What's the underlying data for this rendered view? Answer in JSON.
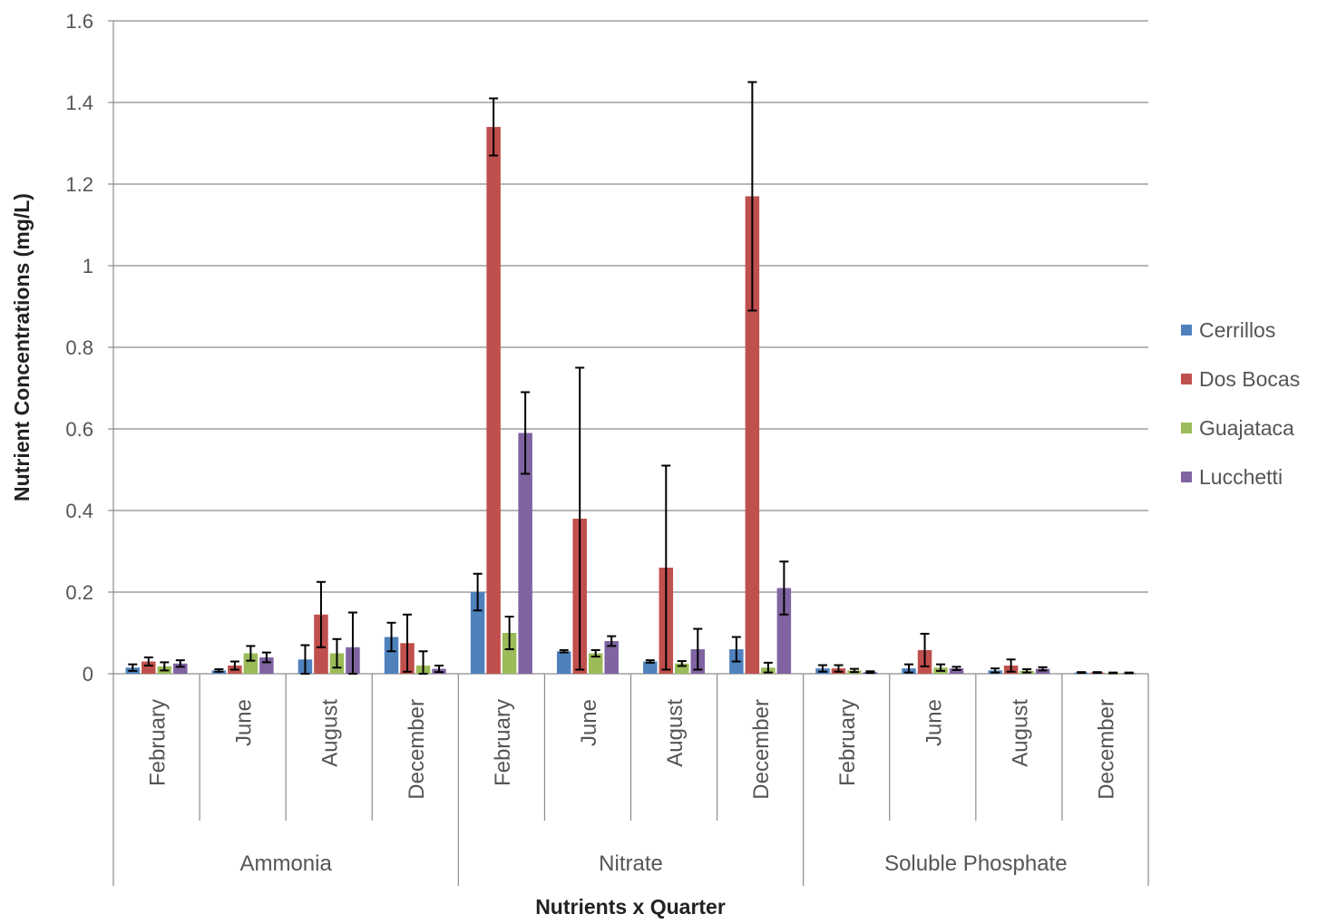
{
  "chart_data": {
    "type": "bar",
    "title": "",
    "xlabel": "Nutrients x Quarter",
    "ylabel": "Nutrient Concentrations (mg/L)",
    "ylim": [
      0,
      1.6
    ],
    "yticks": [
      "0",
      "0.2",
      "0.4",
      "0.6",
      "0.8",
      "1",
      "1.2",
      "1.4",
      "1.6"
    ],
    "grid": true,
    "legend_position": "right",
    "groups": [
      {
        "name": "Ammonia",
        "categories": [
          "February",
          "June",
          "August",
          "December"
        ]
      },
      {
        "name": "Nitrate",
        "categories": [
          "February",
          "June",
          "August",
          "December"
        ]
      },
      {
        "name": "Soluble Phosphate",
        "categories": [
          "February",
          "June",
          "August",
          "December"
        ]
      }
    ],
    "series": [
      {
        "name": "Cerrillos",
        "color": "#4F81BD",
        "values": [
          0.015,
          0.008,
          0.035,
          0.09,
          0.2,
          0.055,
          0.03,
          0.06,
          0.013,
          0.013,
          0.008,
          0.003
        ],
        "errors": [
          0.008,
          0.003,
          0.035,
          0.035,
          0.045,
          0.003,
          0.003,
          0.03,
          0.008,
          0.01,
          0.005,
          0.001
        ]
      },
      {
        "name": "Dos Bocas",
        "color": "#C0504D",
        "values": [
          0.03,
          0.02,
          0.145,
          0.075,
          1.34,
          0.38,
          0.26,
          1.17,
          0.013,
          0.058,
          0.02,
          0.003
        ],
        "errors": [
          0.01,
          0.01,
          0.08,
          0.07,
          0.07,
          0.37,
          0.25,
          0.28,
          0.008,
          0.04,
          0.015,
          0.001
        ]
      },
      {
        "name": "Guajataca",
        "color": "#9BBB59",
        "values": [
          0.018,
          0.05,
          0.05,
          0.02,
          0.1,
          0.05,
          0.025,
          0.015,
          0.008,
          0.015,
          0.007,
          0.002
        ],
        "errors": [
          0.01,
          0.018,
          0.035,
          0.035,
          0.04,
          0.008,
          0.006,
          0.012,
          0.004,
          0.008,
          0.004,
          0.001
        ]
      },
      {
        "name": "Lucchetti",
        "color": "#8064A2",
        "values": [
          0.025,
          0.04,
          0.065,
          0.012,
          0.59,
          0.08,
          0.06,
          0.21,
          0.004,
          0.013,
          0.012,
          0.002
        ],
        "errors": [
          0.008,
          0.012,
          0.085,
          0.008,
          0.1,
          0.012,
          0.05,
          0.065,
          0.002,
          0.004,
          0.004,
          0.001
        ]
      }
    ]
  }
}
